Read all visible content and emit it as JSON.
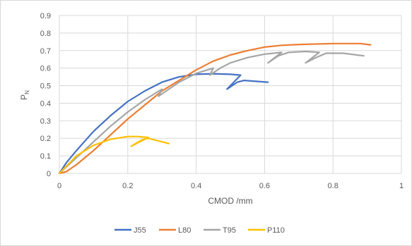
{
  "chart_data": {
    "type": "line",
    "title": "",
    "xlabel": "CMOD /mm",
    "ylabel_main": "P",
    "ylabel_sub": "N",
    "xlim": [
      0,
      1
    ],
    "ylim": [
      0,
      0.9
    ],
    "xticks": [
      "0",
      "0.2",
      "0.4",
      "0.6",
      "0.8",
      "1"
    ],
    "xtick_values": [
      0,
      0.2,
      0.4,
      0.6,
      0.8,
      1
    ],
    "yticks": [
      "0",
      "0.1",
      "0.2",
      "0.3",
      "0.4",
      "0.5",
      "0.6",
      "0.7",
      "0.8",
      "0.9"
    ],
    "ytick_values": [
      0,
      0.1,
      0.2,
      0.3,
      0.4,
      0.5,
      0.6,
      0.7,
      0.8,
      0.9
    ],
    "grid": true,
    "legend_position": "bottom",
    "series": [
      {
        "name": "J55",
        "color": "#4472c4",
        "points": [
          [
            0,
            0
          ],
          [
            0.02,
            0.06
          ],
          [
            0.05,
            0.13
          ],
          [
            0.1,
            0.24
          ],
          [
            0.15,
            0.33
          ],
          [
            0.2,
            0.41
          ],
          [
            0.25,
            0.47
          ],
          [
            0.3,
            0.52
          ],
          [
            0.35,
            0.55
          ],
          [
            0.4,
            0.565
          ],
          [
            0.45,
            0.568
          ],
          [
            0.5,
            0.565
          ],
          [
            0.53,
            0.56
          ],
          [
            0.49,
            0.48
          ],
          [
            0.52,
            0.52
          ],
          [
            0.54,
            0.53
          ],
          [
            0.61,
            0.52
          ]
        ]
      },
      {
        "name": "L80",
        "color": "#ed7d31",
        "points": [
          [
            0,
            0
          ],
          [
            0.02,
            0.01
          ],
          [
            0.05,
            0.05
          ],
          [
            0.1,
            0.13
          ],
          [
            0.15,
            0.22
          ],
          [
            0.2,
            0.31
          ],
          [
            0.25,
            0.39
          ],
          [
            0.3,
            0.47
          ],
          [
            0.35,
            0.53
          ],
          [
            0.4,
            0.59
          ],
          [
            0.45,
            0.64
          ],
          [
            0.5,
            0.675
          ],
          [
            0.55,
            0.7
          ],
          [
            0.6,
            0.72
          ],
          [
            0.65,
            0.73
          ],
          [
            0.7,
            0.735
          ],
          [
            0.8,
            0.74
          ],
          [
            0.85,
            0.74
          ],
          [
            0.88,
            0.74
          ],
          [
            0.91,
            0.733
          ]
        ]
      },
      {
        "name": "T95",
        "color": "#a5a5a5",
        "points": [
          [
            0,
            0
          ],
          [
            0.05,
            0.09
          ],
          [
            0.1,
            0.18
          ],
          [
            0.15,
            0.27
          ],
          [
            0.2,
            0.35
          ],
          [
            0.25,
            0.42
          ],
          [
            0.3,
            0.48
          ],
          [
            0.29,
            0.44
          ],
          [
            0.32,
            0.48
          ],
          [
            0.35,
            0.52
          ],
          [
            0.4,
            0.57
          ],
          [
            0.45,
            0.6
          ],
          [
            0.44,
            0.56
          ],
          [
            0.47,
            0.6
          ],
          [
            0.5,
            0.63
          ],
          [
            0.55,
            0.66
          ],
          [
            0.6,
            0.68
          ],
          [
            0.65,
            0.69
          ],
          [
            0.61,
            0.63
          ],
          [
            0.64,
            0.67
          ],
          [
            0.67,
            0.69
          ],
          [
            0.72,
            0.695
          ],
          [
            0.76,
            0.69
          ],
          [
            0.72,
            0.63
          ],
          [
            0.75,
            0.66
          ],
          [
            0.78,
            0.685
          ],
          [
            0.83,
            0.685
          ],
          [
            0.89,
            0.67
          ]
        ]
      },
      {
        "name": "P110",
        "color": "#ffc000",
        "points": [
          [
            0,
            0
          ],
          [
            0.02,
            0.04
          ],
          [
            0.05,
            0.1
          ],
          [
            0.1,
            0.16
          ],
          [
            0.15,
            0.195
          ],
          [
            0.2,
            0.21
          ],
          [
            0.23,
            0.21
          ],
          [
            0.26,
            0.205
          ],
          [
            0.21,
            0.155
          ],
          [
            0.24,
            0.19
          ],
          [
            0.26,
            0.2
          ],
          [
            0.3,
            0.18
          ],
          [
            0.32,
            0.17
          ]
        ]
      }
    ]
  }
}
